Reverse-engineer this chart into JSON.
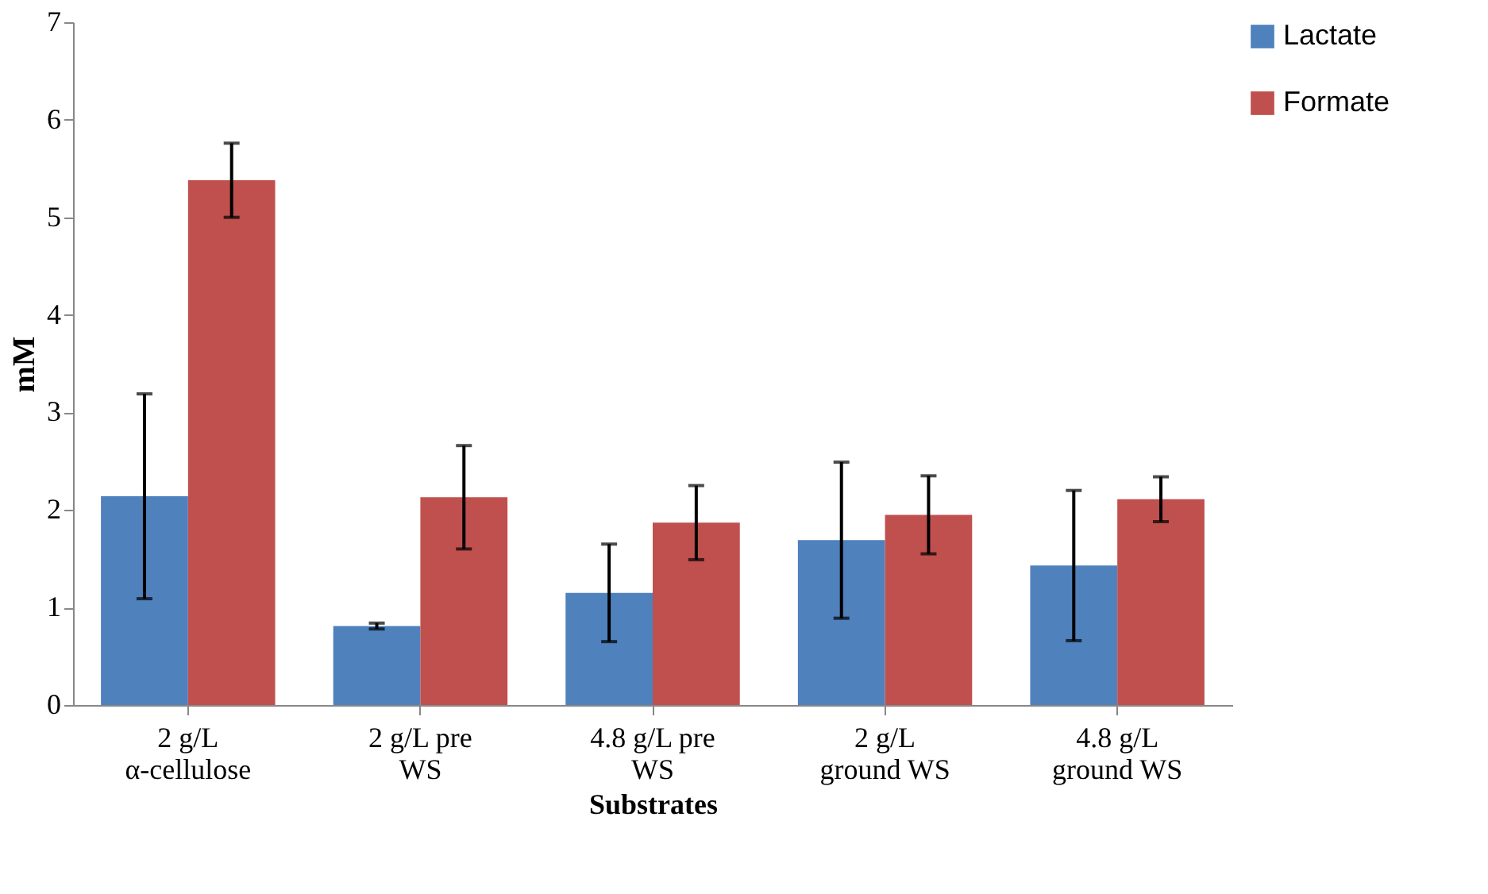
{
  "chart_data": {
    "type": "bar",
    "xlabel": "Substrates",
    "ylabel": "mM",
    "categories": [
      "2 g/L α-cellulose",
      "2 g/L pre WS",
      "4.8 g/L pre WS",
      "2 g/L ground WS",
      "4.8 g/L ground WS"
    ],
    "series": [
      {
        "name": "Lactate",
        "color": "#4f81bd",
        "values": [
          2.14,
          0.81,
          1.15,
          1.69,
          1.43
        ],
        "errors": [
          1.05,
          0.03,
          0.5,
          0.8,
          0.77
        ]
      },
      {
        "name": "Formate",
        "color": "#c0504d",
        "values": [
          5.38,
          2.13,
          1.87,
          1.95,
          2.11
        ],
        "errors": [
          0.38,
          0.53,
          0.38,
          0.4,
          0.23
        ]
      }
    ],
    "ylim": [
      0,
      7
    ],
    "yticks": [
      0,
      1,
      2,
      3,
      4,
      5,
      6,
      7
    ],
    "grid": false,
    "legend": "right"
  }
}
